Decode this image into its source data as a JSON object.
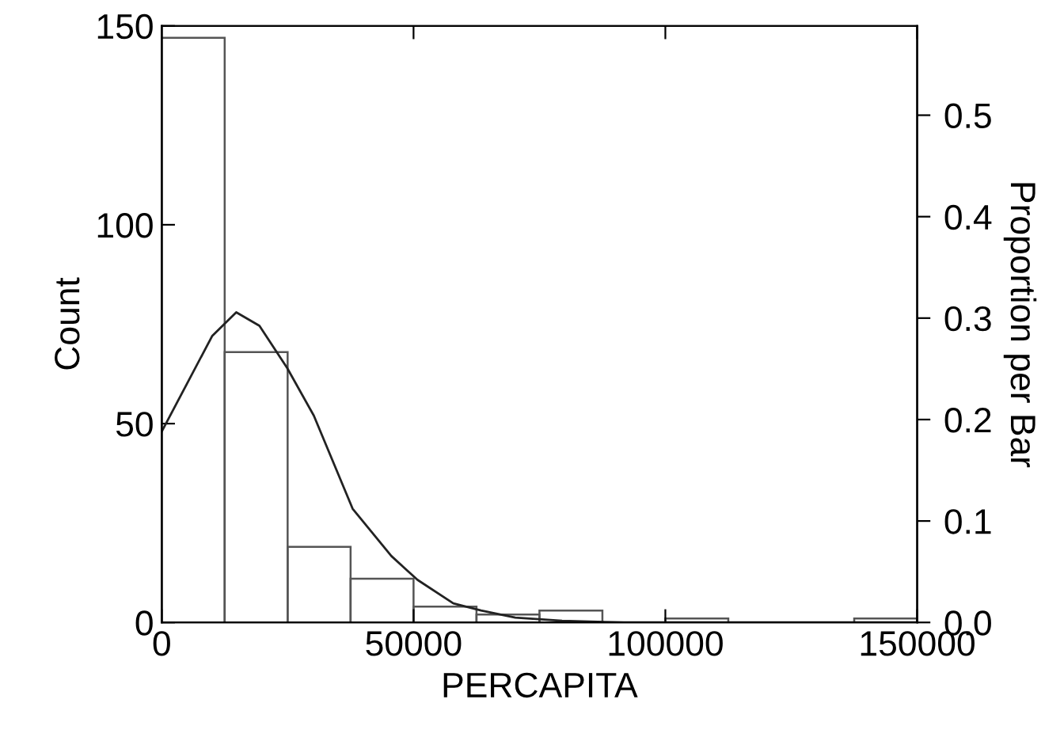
{
  "chart_data": {
    "type": "histogram",
    "xlabel": "PERCAPITA",
    "ylabel": "Count",
    "y2label": "Proportion per Bar",
    "bins": [
      0,
      12500,
      25000,
      37500,
      50000,
      62500,
      75000,
      87500,
      100000,
      112500,
      125000,
      137500,
      150000
    ],
    "series": [
      {
        "color": "#555555",
        "values": [
          147,
          68,
          19,
          11,
          4,
          2,
          3,
          0,
          1,
          0,
          0,
          1
        ]
      },
      {
        "type": "line",
        "color": "#222222",
        "x": [
          0,
          5000,
          10000,
          14800,
          19400,
          24900,
          30200,
          37900,
          45600,
          50800,
          57900,
          63400,
          70200,
          79500,
          91800,
          110000,
          150000
        ],
        "values": [
          48,
          60,
          72,
          78,
          74.6,
          64,
          52,
          28.6,
          16.7,
          10.7,
          4.8,
          3,
          1.2,
          0.4,
          0,
          0,
          0
        ]
      }
    ],
    "xlim": [
      0,
      150000
    ],
    "xticks": [
      0,
      50000,
      100000,
      150000
    ],
    "ylim": [
      0,
      150
    ],
    "yticks": [
      0,
      50,
      100,
      150
    ],
    "y2lim": [
      0,
      0.588
    ],
    "y2ticks": [
      {
        "value": 0,
        "label": "0.0"
      },
      0.1,
      0.2,
      0.3,
      0.4,
      0.5
    ],
    "grid": false,
    "legend": false
  }
}
